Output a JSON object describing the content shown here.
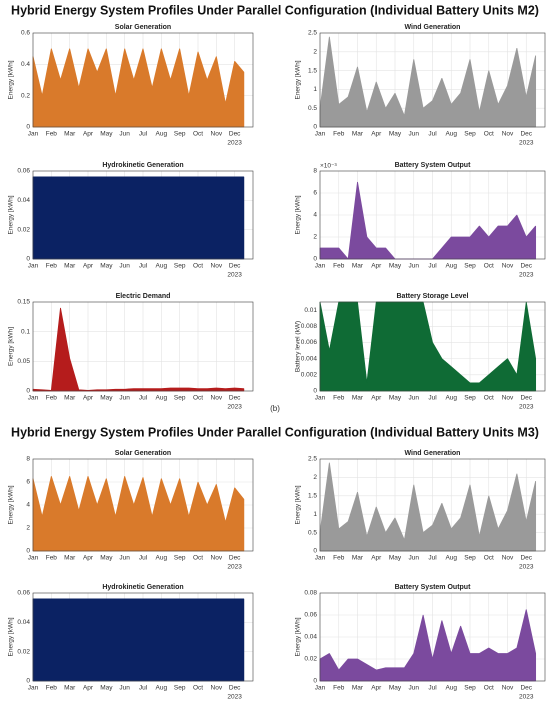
{
  "titles": [
    "Hybrid Energy System Profiles Under Parallel Configuration (Individual Battery Units M2)",
    "Hybrid Energy System Profiles Under Parallel Configuration (Individual Battery Units M3)"
  ],
  "figure_label": "(b)",
  "chart_data": [
    {
      "type": "area",
      "title": "Solar Generation",
      "ylabel": "Energy [kWh]",
      "color": "#d97a2b",
      "grid": true,
      "year": "2023",
      "x": [
        1,
        1.5,
        2,
        2.5,
        3,
        3.5,
        4,
        4.5,
        5,
        5.5,
        6,
        6.5,
        7,
        7.5,
        8,
        8.5,
        9,
        9.5,
        10,
        10.5,
        11,
        11.5,
        12,
        12.5
      ],
      "values": [
        0.45,
        0.2,
        0.5,
        0.3,
        0.5,
        0.25,
        0.5,
        0.35,
        0.5,
        0.2,
        0.5,
        0.3,
        0.5,
        0.25,
        0.5,
        0.3,
        0.5,
        0.2,
        0.48,
        0.3,
        0.45,
        0.15,
        0.42,
        0.35
      ],
      "xlim": [
        1,
        13
      ],
      "ylim": [
        0,
        0.6
      ],
      "yticks": [
        0,
        0.2,
        0.4,
        0.6
      ],
      "xticks": [
        {
          "value": 1,
          "label": "Jan"
        },
        {
          "value": 2,
          "label": "Feb"
        },
        {
          "value": 3,
          "label": "Mar"
        },
        {
          "value": 4,
          "label": "Apr"
        },
        {
          "value": 5,
          "label": "May"
        },
        {
          "value": 6,
          "label": "Jun"
        },
        {
          "value": 7,
          "label": "Jul"
        },
        {
          "value": 8,
          "label": "Aug"
        },
        {
          "value": 9,
          "label": "Sep"
        },
        {
          "value": 10,
          "label": "Oct"
        },
        {
          "value": 11,
          "label": "Nov"
        },
        {
          "value": 12,
          "label": "Dec"
        }
      ]
    },
    {
      "type": "area",
      "title": "Wind Generation",
      "ylabel": "Energy [kWh]",
      "color": "#9a9a9a",
      "grid": true,
      "year": "2023",
      "x": [
        1,
        1.5,
        2,
        2.5,
        3,
        3.5,
        4,
        4.5,
        5,
        5.5,
        6,
        6.5,
        7,
        7.5,
        8,
        8.5,
        9,
        9.5,
        10,
        10.5,
        11,
        11.5,
        12,
        12.5
      ],
      "values": [
        0.5,
        2.4,
        0.6,
        0.8,
        1.6,
        0.4,
        1.2,
        0.5,
        0.9,
        0.3,
        1.8,
        0.5,
        0.7,
        1.3,
        0.6,
        0.9,
        1.8,
        0.4,
        1.5,
        0.6,
        1.1,
        2.1,
        0.8,
        1.9
      ],
      "xlim": [
        1,
        13
      ],
      "ylim": [
        0,
        2.5
      ],
      "yticks": [
        0,
        0.5,
        1,
        1.5,
        2,
        2.5
      ],
      "xticks": [
        {
          "value": 1,
          "label": "Jan"
        },
        {
          "value": 2,
          "label": "Feb"
        },
        {
          "value": 3,
          "label": "Mar"
        },
        {
          "value": 4,
          "label": "Apr"
        },
        {
          "value": 5,
          "label": "May"
        },
        {
          "value": 6,
          "label": "Jun"
        },
        {
          "value": 7,
          "label": "Jul"
        },
        {
          "value": 8,
          "label": "Aug"
        },
        {
          "value": 9,
          "label": "Sep"
        },
        {
          "value": 10,
          "label": "Oct"
        },
        {
          "value": 11,
          "label": "Nov"
        },
        {
          "value": 12,
          "label": "Dec"
        }
      ]
    },
    {
      "type": "area",
      "title": "Hydrokinetic Generation",
      "ylabel": "Energy [kWh]",
      "color": "#0b2263",
      "grid": true,
      "year": "2023",
      "x": [
        1,
        1.5,
        2,
        2.5,
        3,
        3.5,
        4,
        4.5,
        5,
        5.5,
        6,
        6.5,
        7,
        7.5,
        8,
        8.5,
        9,
        9.5,
        10,
        10.5,
        11,
        11.5,
        12,
        12.5
      ],
      "values": [
        0.056,
        0.056,
        0.056,
        0.056,
        0.056,
        0.056,
        0.056,
        0.056,
        0.056,
        0.056,
        0.056,
        0.056,
        0.056,
        0.056,
        0.056,
        0.056,
        0.056,
        0.056,
        0.056,
        0.056,
        0.056,
        0.056,
        0.056,
        0.056
      ],
      "xlim": [
        1,
        13
      ],
      "ylim": [
        0,
        0.06
      ],
      "yticks": [
        0,
        0.02,
        0.04,
        0.06
      ],
      "xticks": [
        {
          "value": 1,
          "label": "Jan"
        },
        {
          "value": 2,
          "label": "Feb"
        },
        {
          "value": 3,
          "label": "Mar"
        },
        {
          "value": 4,
          "label": "Apr"
        },
        {
          "value": 5,
          "label": "May"
        },
        {
          "value": 6,
          "label": "Jun"
        },
        {
          "value": 7,
          "label": "Jul"
        },
        {
          "value": 8,
          "label": "Aug"
        },
        {
          "value": 9,
          "label": "Sep"
        },
        {
          "value": 10,
          "label": "Oct"
        },
        {
          "value": 11,
          "label": "Nov"
        },
        {
          "value": 12,
          "label": "Dec"
        }
      ]
    },
    {
      "type": "area",
      "title": "Battery System Output",
      "ylabel": "Energy [kWh]",
      "y_exponent": "×10⁻³",
      "color": "#7b4a9e",
      "grid": true,
      "year": "2023",
      "x": [
        1,
        1.5,
        2,
        2.5,
        3,
        3.5,
        4,
        4.5,
        5,
        5.5,
        6,
        6.5,
        7,
        7.5,
        8,
        8.5,
        9,
        9.5,
        10,
        10.5,
        11,
        11.5,
        12,
        12.5
      ],
      "values": [
        1,
        1,
        1,
        0,
        7,
        2,
        1,
        1,
        0,
        0,
        0,
        0,
        0,
        1,
        2,
        2,
        2,
        3,
        2,
        3,
        3,
        4,
        2,
        3
      ],
      "xlim": [
        1,
        13
      ],
      "ylim": [
        0,
        8
      ],
      "yticks": [
        0,
        2,
        4,
        6,
        8
      ],
      "xticks": [
        {
          "value": 1,
          "label": "Jan"
        },
        {
          "value": 2,
          "label": "Feb"
        },
        {
          "value": 3,
          "label": "Mar"
        },
        {
          "value": 4,
          "label": "Apr"
        },
        {
          "value": 5,
          "label": "May"
        },
        {
          "value": 6,
          "label": "Jun"
        },
        {
          "value": 7,
          "label": "Jul"
        },
        {
          "value": 8,
          "label": "Aug"
        },
        {
          "value": 9,
          "label": "Sep"
        },
        {
          "value": 10,
          "label": "Oct"
        },
        {
          "value": 11,
          "label": "Nov"
        },
        {
          "value": 12,
          "label": "Dec"
        }
      ]
    },
    {
      "type": "area",
      "title": "Electric Demand",
      "ylabel": "Energy [kWh]",
      "color": "#b51c1c",
      "grid": true,
      "year": "2023",
      "x": [
        1,
        1.5,
        2,
        2.5,
        3,
        3.5,
        4,
        4.5,
        5,
        5.5,
        6,
        6.5,
        7,
        7.5,
        8,
        8.5,
        9,
        9.5,
        10,
        10.5,
        11,
        11.5,
        12,
        12.5
      ],
      "values": [
        0.003,
        0.002,
        0.001,
        0.14,
        0.055,
        0.002,
        0.001,
        0.002,
        0.002,
        0.003,
        0.003,
        0.004,
        0.004,
        0.004,
        0.004,
        0.005,
        0.005,
        0.005,
        0.004,
        0.004,
        0.005,
        0.004,
        0.005,
        0.004
      ],
      "xlim": [
        1,
        13
      ],
      "ylim": [
        0,
        0.15
      ],
      "yticks": [
        0,
        0.05,
        0.1,
        0.15
      ],
      "xticks": [
        {
          "value": 1,
          "label": "Jan"
        },
        {
          "value": 2,
          "label": "Feb"
        },
        {
          "value": 3,
          "label": "Mar"
        },
        {
          "value": 4,
          "label": "Apr"
        },
        {
          "value": 5,
          "label": "May"
        },
        {
          "value": 6,
          "label": "Jun"
        },
        {
          "value": 7,
          "label": "Jul"
        },
        {
          "value": 8,
          "label": "Aug"
        },
        {
          "value": 9,
          "label": "Sep"
        },
        {
          "value": 10,
          "label": "Oct"
        },
        {
          "value": 11,
          "label": "Nov"
        },
        {
          "value": 12,
          "label": "Dec"
        }
      ]
    },
    {
      "type": "area",
      "title": "Battery Storage Level",
      "ylabel": "Battery level (kW)",
      "color": "#0f6b35",
      "grid": true,
      "year": "2023",
      "x": [
        1,
        1.5,
        2,
        2.5,
        3,
        3.5,
        4,
        4.5,
        5,
        5.5,
        6,
        6.5,
        7,
        7.5,
        8,
        8.5,
        9,
        9.5,
        10,
        10.5,
        11,
        11.5,
        12,
        12.5
      ],
      "values": [
        0.011,
        0.005,
        0.011,
        0.011,
        0.011,
        0.001,
        0.011,
        0.011,
        0.011,
        0.011,
        0.011,
        0.011,
        0.006,
        0.004,
        0.003,
        0.002,
        0.001,
        0.001,
        0.002,
        0.003,
        0.004,
        0.002,
        0.011,
        0.004
      ],
      "xlim": [
        1,
        13
      ],
      "ylim": [
        0,
        0.011
      ],
      "yticks": [
        0,
        0.002,
        0.004,
        0.006,
        0.008,
        0.01
      ],
      "xticks": [
        {
          "value": 1,
          "label": "Jan"
        },
        {
          "value": 2,
          "label": "Feb"
        },
        {
          "value": 3,
          "label": "Mar"
        },
        {
          "value": 4,
          "label": "Apr"
        },
        {
          "value": 5,
          "label": "May"
        },
        {
          "value": 6,
          "label": "Jun"
        },
        {
          "value": 7,
          "label": "Jul"
        },
        {
          "value": 8,
          "label": "Aug"
        },
        {
          "value": 9,
          "label": "Sep"
        },
        {
          "value": 10,
          "label": "Oct"
        },
        {
          "value": 11,
          "label": "Nov"
        },
        {
          "value": 12,
          "label": "Dec"
        }
      ]
    },
    {
      "type": "area",
      "title": "Solar Generation",
      "ylabel": "Energy [kWh]",
      "color": "#d97a2b",
      "grid": true,
      "year": "2023",
      "x": [
        1,
        1.5,
        2,
        2.5,
        3,
        3.5,
        4,
        4.5,
        5,
        5.5,
        6,
        6.5,
        7,
        7.5,
        8,
        8.5,
        9,
        9.5,
        10,
        10.5,
        11,
        11.5,
        12,
        12.5
      ],
      "values": [
        6.3,
        3,
        6.5,
        4,
        6.5,
        3.5,
        6.5,
        4,
        6.3,
        3,
        6.5,
        4,
        6.4,
        3,
        6.3,
        4,
        6.3,
        3,
        6,
        4,
        5.8,
        2.5,
        5.5,
        4.5
      ],
      "xlim": [
        1,
        13
      ],
      "ylim": [
        0,
        8
      ],
      "yticks": [
        0,
        2,
        4,
        6,
        8
      ],
      "xticks": [
        {
          "value": 1,
          "label": "Jan"
        },
        {
          "value": 2,
          "label": "Feb"
        },
        {
          "value": 3,
          "label": "Mar"
        },
        {
          "value": 4,
          "label": "Apr"
        },
        {
          "value": 5,
          "label": "May"
        },
        {
          "value": 6,
          "label": "Jun"
        },
        {
          "value": 7,
          "label": "Jul"
        },
        {
          "value": 8,
          "label": "Aug"
        },
        {
          "value": 9,
          "label": "Sep"
        },
        {
          "value": 10,
          "label": "Oct"
        },
        {
          "value": 11,
          "label": "Nov"
        },
        {
          "value": 12,
          "label": "Dec"
        }
      ]
    },
    {
      "type": "area",
      "title": "Wind Generation",
      "ylabel": "Energy [kWh]",
      "color": "#9a9a9a",
      "grid": true,
      "year": "2023",
      "x": [
        1,
        1.5,
        2,
        2.5,
        3,
        3.5,
        4,
        4.5,
        5,
        5.5,
        6,
        6.5,
        7,
        7.5,
        8,
        8.5,
        9,
        9.5,
        10,
        10.5,
        11,
        11.5,
        12,
        12.5
      ],
      "values": [
        0.5,
        2.4,
        0.6,
        0.8,
        1.6,
        0.4,
        1.2,
        0.5,
        0.9,
        0.3,
        1.8,
        0.5,
        0.7,
        1.3,
        0.6,
        0.9,
        1.8,
        0.4,
        1.5,
        0.6,
        1.1,
        2.1,
        0.8,
        1.9
      ],
      "xlim": [
        1,
        13
      ],
      "ylim": [
        0,
        2.5
      ],
      "yticks": [
        0,
        0.5,
        1,
        1.5,
        2,
        2.5
      ],
      "xticks": [
        {
          "value": 1,
          "label": "Jan"
        },
        {
          "value": 2,
          "label": "Feb"
        },
        {
          "value": 3,
          "label": "Mar"
        },
        {
          "value": 4,
          "label": "Apr"
        },
        {
          "value": 5,
          "label": "May"
        },
        {
          "value": 6,
          "label": "Jun"
        },
        {
          "value": 7,
          "label": "Jul"
        },
        {
          "value": 8,
          "label": "Aug"
        },
        {
          "value": 9,
          "label": "Sep"
        },
        {
          "value": 10,
          "label": "Oct"
        },
        {
          "value": 11,
          "label": "Nov"
        },
        {
          "value": 12,
          "label": "Dec"
        }
      ]
    },
    {
      "type": "area",
      "title": "Hydrokinetic Generation",
      "ylabel": "Energy [kWh]",
      "color": "#0b2263",
      "grid": true,
      "year": "2023",
      "x": [
        1,
        1.5,
        2,
        2.5,
        3,
        3.5,
        4,
        4.5,
        5,
        5.5,
        6,
        6.5,
        7,
        7.5,
        8,
        8.5,
        9,
        9.5,
        10,
        10.5,
        11,
        11.5,
        12,
        12.5
      ],
      "values": [
        0.056,
        0.056,
        0.056,
        0.056,
        0.056,
        0.056,
        0.056,
        0.056,
        0.056,
        0.056,
        0.056,
        0.056,
        0.056,
        0.056,
        0.056,
        0.056,
        0.056,
        0.056,
        0.056,
        0.056,
        0.056,
        0.056,
        0.056,
        0.056
      ],
      "xlim": [
        1,
        13
      ],
      "ylim": [
        0,
        0.06
      ],
      "yticks": [
        0,
        0.02,
        0.04,
        0.06
      ],
      "xticks": [
        {
          "value": 1,
          "label": "Jan"
        },
        {
          "value": 2,
          "label": "Feb"
        },
        {
          "value": 3,
          "label": "Mar"
        },
        {
          "value": 4,
          "label": "Apr"
        },
        {
          "value": 5,
          "label": "May"
        },
        {
          "value": 6,
          "label": "Jun"
        },
        {
          "value": 7,
          "label": "Jul"
        },
        {
          "value": 8,
          "label": "Aug"
        },
        {
          "value": 9,
          "label": "Sep"
        },
        {
          "value": 10,
          "label": "Oct"
        },
        {
          "value": 11,
          "label": "Nov"
        },
        {
          "value": 12,
          "label": "Dec"
        }
      ]
    },
    {
      "type": "area",
      "title": "Battery System Output",
      "ylabel": "Energy [kWh]",
      "color": "#7b4a9e",
      "grid": true,
      "year": "2023",
      "x": [
        1,
        1.5,
        2,
        2.5,
        3,
        3.5,
        4,
        4.5,
        5,
        5.5,
        6,
        6.5,
        7,
        7.5,
        8,
        8.5,
        9,
        9.5,
        10,
        10.5,
        11,
        11.5,
        12,
        12.5
      ],
      "values": [
        0.02,
        0.025,
        0.01,
        0.02,
        0.02,
        0.015,
        0.01,
        0.012,
        0.012,
        0.012,
        0.025,
        0.06,
        0.02,
        0.055,
        0.025,
        0.05,
        0.025,
        0.025,
        0.03,
        0.025,
        0.025,
        0.03,
        0.065,
        0.025
      ],
      "xlim": [
        1,
        13
      ],
      "ylim": [
        0,
        0.08
      ],
      "yticks": [
        0,
        0.02,
        0.04,
        0.06,
        0.08
      ],
      "xticks": [
        {
          "value": 1,
          "label": "Jan"
        },
        {
          "value": 2,
          "label": "Feb"
        },
        {
          "value": 3,
          "label": "Mar"
        },
        {
          "value": 4,
          "label": "Apr"
        },
        {
          "value": 5,
          "label": "May"
        },
        {
          "value": 6,
          "label": "Jun"
        },
        {
          "value": 7,
          "label": "Jul"
        },
        {
          "value": 8,
          "label": "Aug"
        },
        {
          "value": 9,
          "label": "Sep"
        },
        {
          "value": 10,
          "label": "Oct"
        },
        {
          "value": 11,
          "label": "Nov"
        },
        {
          "value": 12,
          "label": "Dec"
        }
      ]
    }
  ]
}
